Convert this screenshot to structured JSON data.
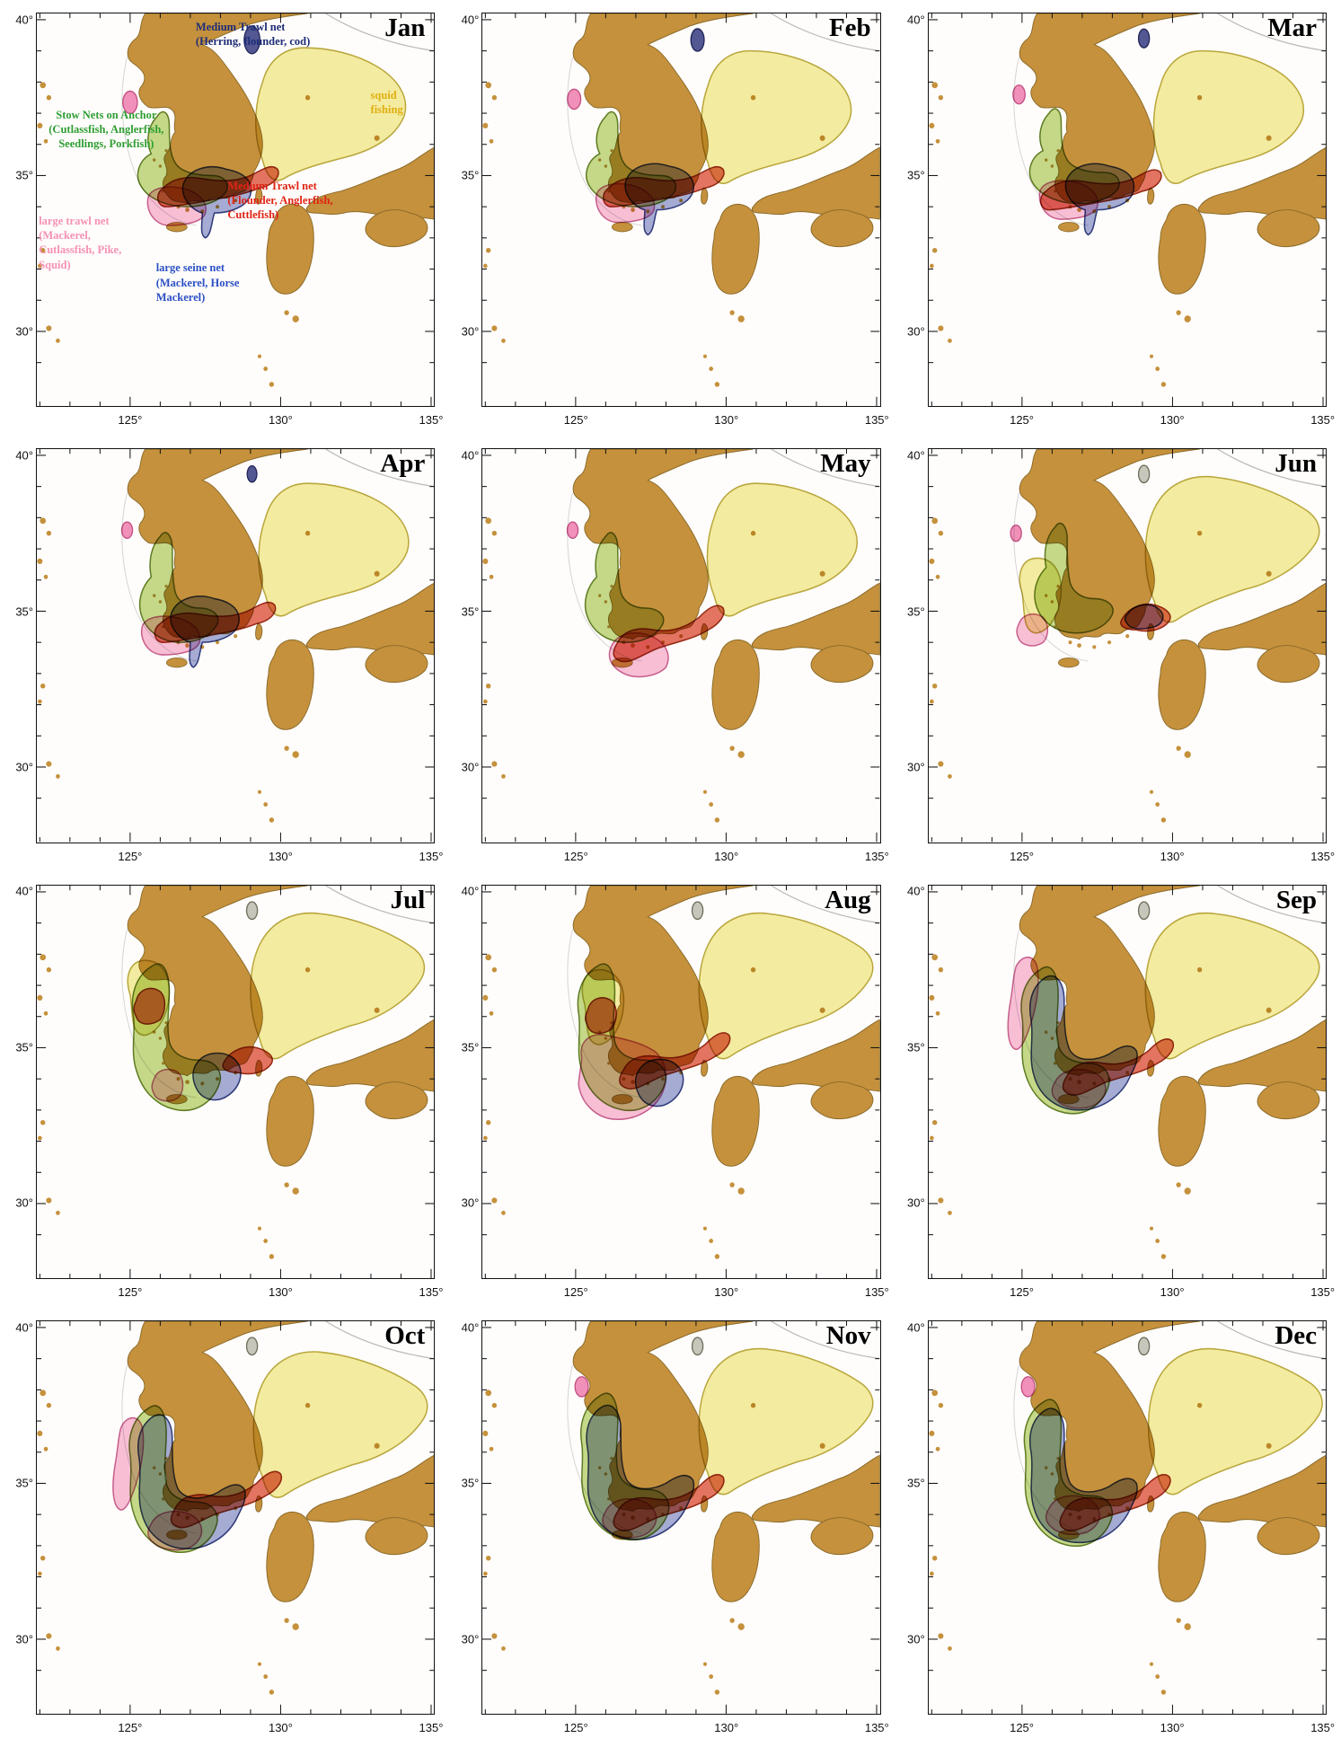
{
  "figure": {
    "description": "Monthly distribution maps of fishing grounds around the Korean Peninsula, January to December"
  },
  "panels": [
    {
      "month": "Jan"
    },
    {
      "month": "Feb"
    },
    {
      "month": "Mar"
    },
    {
      "month": "Apr"
    },
    {
      "month": "May"
    },
    {
      "month": "Jun"
    },
    {
      "month": "Jul"
    },
    {
      "month": "Aug"
    },
    {
      "month": "Sep"
    },
    {
      "month": "Oct"
    },
    {
      "month": "Nov"
    },
    {
      "month": "Dec"
    }
  ],
  "axis": {
    "lat_ticks": [
      "40°",
      "35°",
      "30°"
    ],
    "lon_ticks": [
      "125°",
      "130°",
      "135°"
    ]
  },
  "legend": [
    {
      "id": "medium-trawl-net-herring",
      "label": "Medium Trawl net\n(Herring, flounder, cod)",
      "color": "#1d2d78"
    },
    {
      "id": "squid-fishing",
      "label": "squid\nfishing",
      "color": "#e0af10"
    },
    {
      "id": "stow-nets-on-anchor",
      "label": "Stow Nets on Anchor\n(Cutlassfish, Anglerfish,\nSeedlings, Porkfish)",
      "color": "#2f9e33"
    },
    {
      "id": "medium-trawl-net-flounder",
      "label": "Medium Trawl net\n(Flounder, Anglerfish,\nCuttlefish)",
      "color": "#e02315"
    },
    {
      "id": "large-trawl-net",
      "label": "large trawl net\n(Mackerel,\nCutlassfish, Pike,\nSquid)",
      "color": "#f591b5"
    },
    {
      "id": "large-seine-net",
      "label": "large seine net\n(Mackerel, Horse\nMackerel)",
      "color": "#2b50c5"
    }
  ],
  "colors": {
    "land": "#c5913c",
    "land_stroke": "#8a6a2a",
    "sea": "#fffdfb",
    "frame": "#111111",
    "yellow": "#f0e888",
    "yellow_stroke": "#b9a83e",
    "green": "#9cc23c",
    "green_stroke": "#5f7d23",
    "red": "#d53b20",
    "red_stroke": "#962914",
    "pink": "#f193bb",
    "pink_stroke": "#c7608f",
    "blue": "#5b6ab5",
    "blue_stroke": "#2e3a7c",
    "navy": "#3b4185",
    "navy_stroke": "#23265c",
    "pink_dot": "#ee7fb0",
    "pink_dot_stroke": "#c44f86",
    "gray_patch": "#90917e",
    "gray_patch_stroke": "#6f705f"
  }
}
